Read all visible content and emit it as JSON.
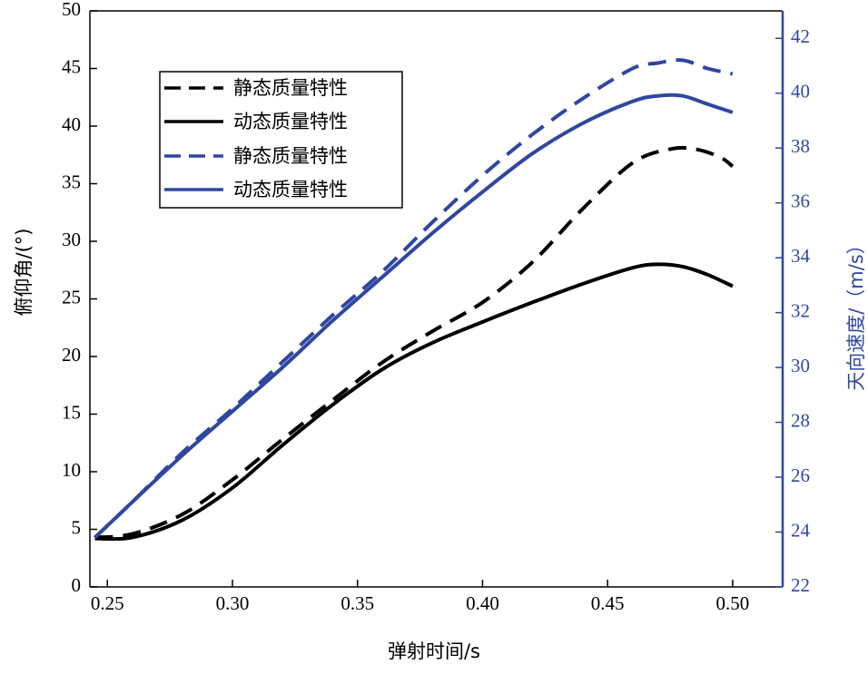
{
  "chart_data": {
    "type": "line",
    "xlabel": "弹射时间/s",
    "ylabel_left": "俯仰角/(°)",
    "ylabel_right": "天向速度/（m/s）",
    "xlim": [
      0.243,
      0.52
    ],
    "ylim_left": [
      0,
      50
    ],
    "ylim_right": [
      22,
      43
    ],
    "xticks": [
      "0.25",
      "0.30",
      "0.35",
      "0.40",
      "0.45",
      "0.50"
    ],
    "yticks_left": [
      "0",
      "5",
      "10",
      "15",
      "20",
      "25",
      "30",
      "35",
      "40",
      "45",
      "50"
    ],
    "yticks_right": [
      "22",
      "24",
      "26",
      "28",
      "30",
      "32",
      "34",
      "36",
      "38",
      "40",
      "42"
    ],
    "legend_position": "top-left",
    "colors": {
      "black": "#000000",
      "blue": "#2f47a0"
    },
    "series": [
      {
        "name": "静态质量特性",
        "axis": "left",
        "color": "#000000",
        "dash": true,
        "x": [
          0.245,
          0.26,
          0.28,
          0.3,
          0.32,
          0.34,
          0.36,
          0.38,
          0.4,
          0.42,
          0.44,
          0.46,
          0.475,
          0.485,
          0.495,
          0.5
        ],
        "y": [
          4.3,
          4.6,
          6.3,
          9.3,
          12.8,
          16.2,
          19.5,
          22.2,
          24.7,
          28.2,
          32.8,
          36.8,
          38.0,
          38.0,
          37.3,
          36.5
        ]
      },
      {
        "name": "动态质量特性",
        "axis": "left",
        "color": "#000000",
        "dash": false,
        "x": [
          0.245,
          0.26,
          0.28,
          0.3,
          0.32,
          0.34,
          0.36,
          0.38,
          0.4,
          0.42,
          0.44,
          0.46,
          0.47,
          0.48,
          0.49,
          0.5
        ],
        "y": [
          4.2,
          4.3,
          5.8,
          8.6,
          12.3,
          15.8,
          18.9,
          21.2,
          23.0,
          24.7,
          26.3,
          27.7,
          28.0,
          27.8,
          27.1,
          26.1
        ]
      },
      {
        "name": "静态质量特性",
        "axis": "right",
        "color": "#2f47a0",
        "dash": true,
        "x": [
          0.245,
          0.26,
          0.28,
          0.3,
          0.32,
          0.34,
          0.36,
          0.38,
          0.4,
          0.42,
          0.44,
          0.46,
          0.47,
          0.48,
          0.49,
          0.5
        ],
        "y": [
          23.8,
          25.1,
          26.9,
          28.5,
          30.2,
          31.9,
          33.5,
          35.3,
          37.0,
          38.5,
          39.8,
          40.9,
          41.1,
          41.2,
          40.9,
          40.7
        ]
      },
      {
        "name": "动态质量特性",
        "axis": "right",
        "color": "#2f47a0",
        "dash": false,
        "x": [
          0.245,
          0.26,
          0.28,
          0.3,
          0.32,
          0.34,
          0.36,
          0.38,
          0.4,
          0.42,
          0.44,
          0.46,
          0.47,
          0.48,
          0.49,
          0.5
        ],
        "y": [
          23.8,
          25.1,
          26.8,
          28.4,
          30.0,
          31.7,
          33.3,
          34.9,
          36.4,
          37.8,
          38.9,
          39.7,
          39.9,
          39.9,
          39.6,
          39.3
        ]
      }
    ]
  }
}
